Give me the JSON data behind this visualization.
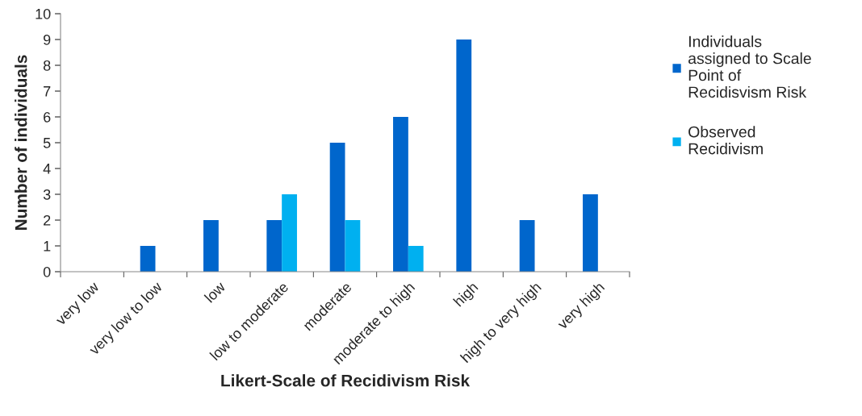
{
  "chart_data": {
    "type": "bar",
    "xlabel": "Likert-Scale of Recidivism Risk",
    "ylabel": "Number of individuals",
    "categories": [
      "very low",
      "very low to low",
      "low",
      "low to moderate",
      "moderate",
      "moderate to high",
      "high",
      "high to very high",
      "very high"
    ],
    "series": [
      {
        "name": "Individuals assigned to Scale Point of Recidisvism Risk",
        "color": "#0066cc",
        "values": [
          0,
          1,
          2,
          2,
          5,
          6,
          9,
          2,
          3
        ]
      },
      {
        "name": "Observed Recidivism",
        "color": "#00b0f0",
        "values": [
          0,
          0,
          0,
          3,
          2,
          1,
          0,
          0,
          0
        ]
      }
    ],
    "ylim": [
      0,
      10
    ],
    "yticks": [
      0,
      1,
      2,
      3,
      4,
      5,
      6,
      7,
      8,
      9,
      10
    ],
    "grid": false,
    "legend": "right"
  }
}
